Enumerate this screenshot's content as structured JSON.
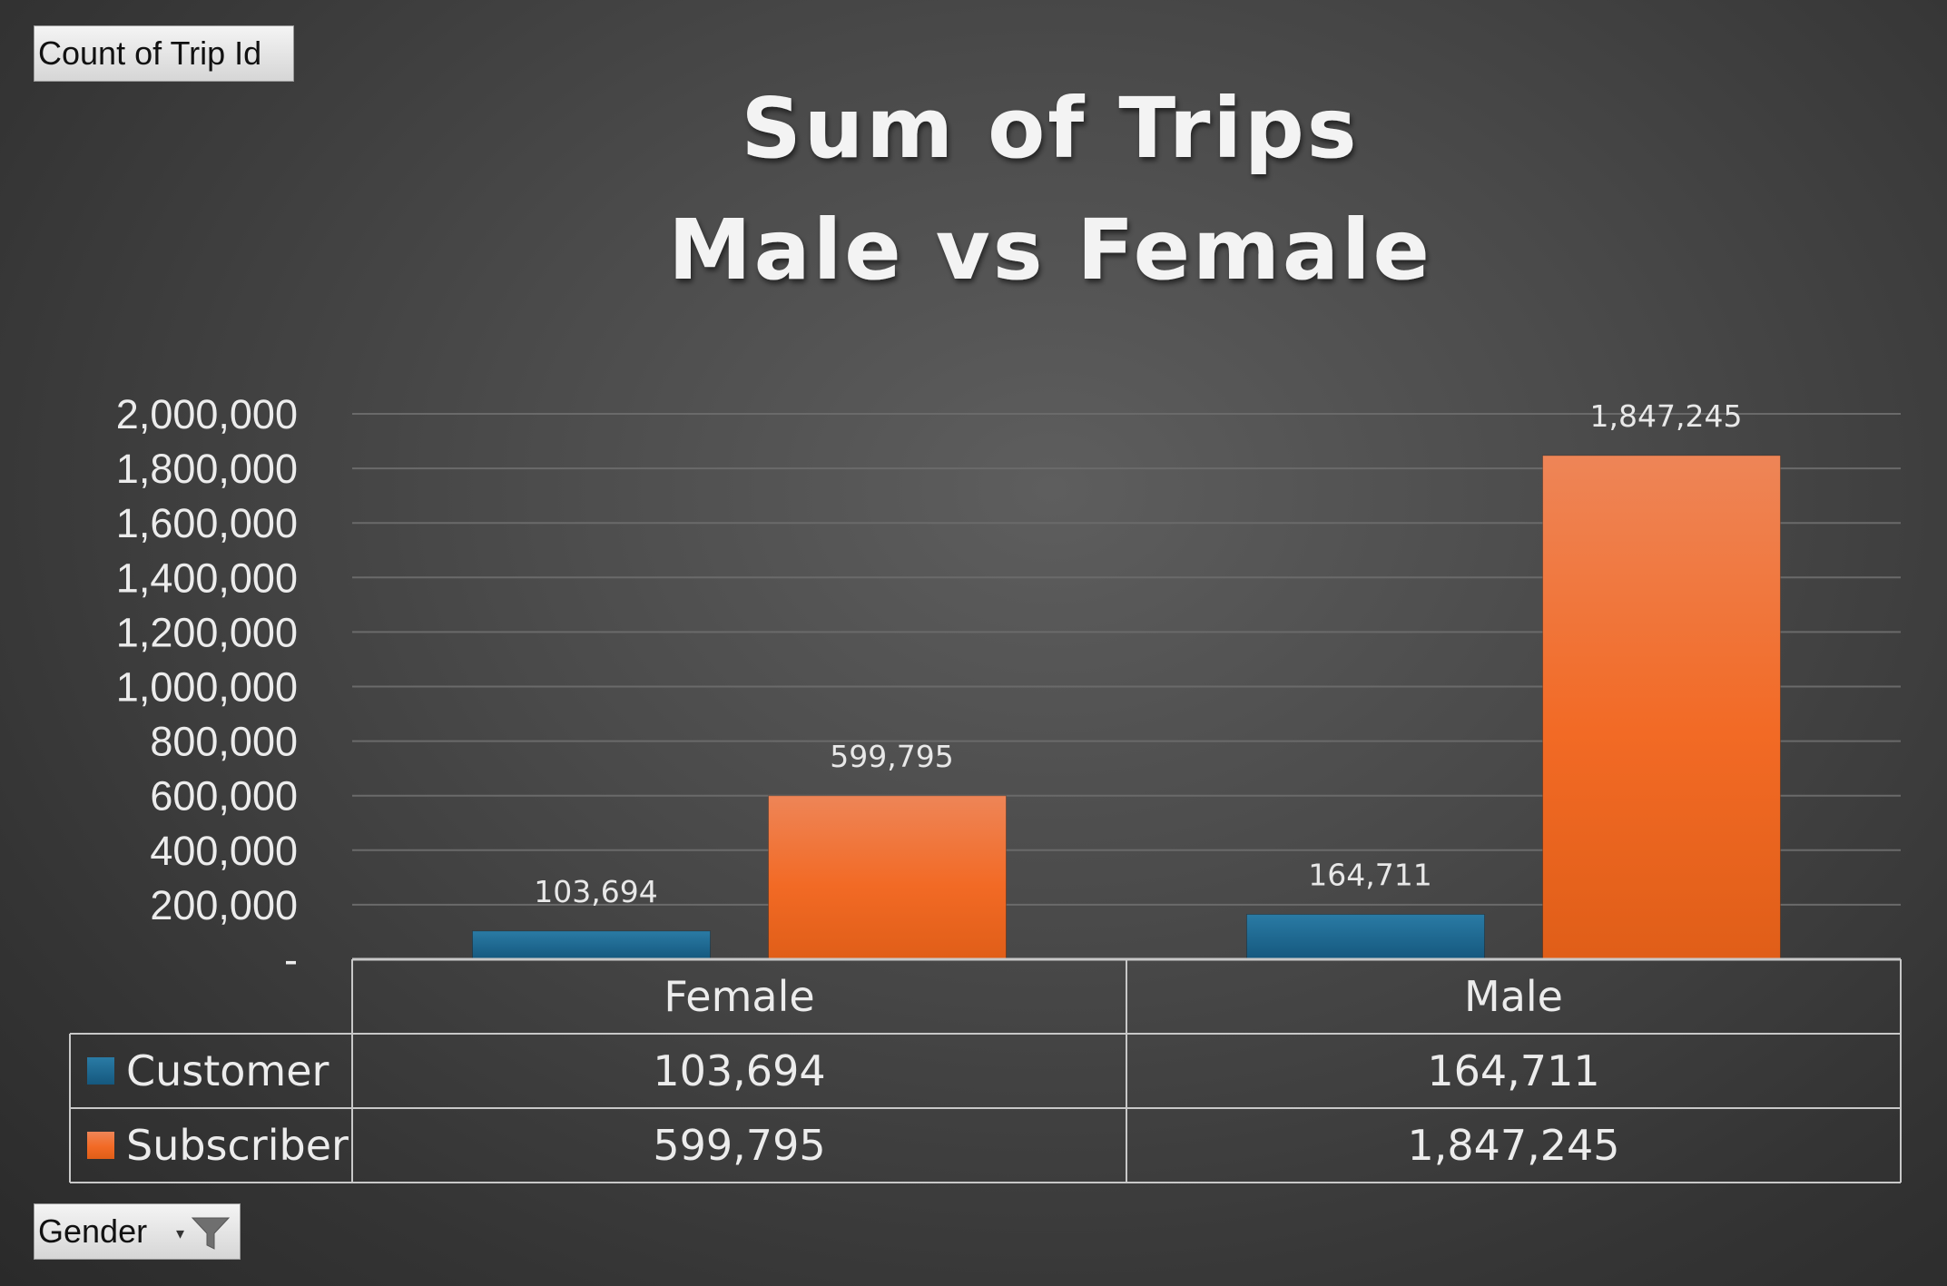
{
  "pivot": {
    "value_field_label": "Count of Trip Id",
    "axis_field_label": "Gender"
  },
  "icons": {
    "filter": "funnel-filter-icon",
    "dropdown": "dropdown-arrow-icon"
  },
  "colors": {
    "customer": "#1f6e99",
    "subscriber": "#f07030",
    "gridline": "#6a6a6a",
    "table_border": "#c8c8c8"
  },
  "chart_data": {
    "type": "bar",
    "title": [
      "Sum of Trips",
      "Male vs Female"
    ],
    "categories": [
      "Female",
      "Male"
    ],
    "series": [
      {
        "name": "Customer",
        "values": [
          103694,
          164711
        ],
        "labels": [
          "103,694",
          "164,711"
        ]
      },
      {
        "name": "Subscriber",
        "values": [
          599795,
          1847245
        ],
        "labels": [
          "599,795",
          "1,847,245"
        ]
      }
    ],
    "ylim": [
      0,
      2000000
    ],
    "yticks": [
      0,
      200000,
      400000,
      600000,
      800000,
      1000000,
      1200000,
      1400000,
      1600000,
      1800000,
      2000000
    ],
    "ytick_labels": [
      "-",
      "200,000",
      "400,000",
      "600,000",
      "800,000",
      "1,000,000",
      "1,200,000",
      "1,400,000",
      "1,600,000",
      "1,800,000",
      "2,000,000"
    ],
    "grid": true,
    "data_table": true,
    "legend": "data-table"
  }
}
